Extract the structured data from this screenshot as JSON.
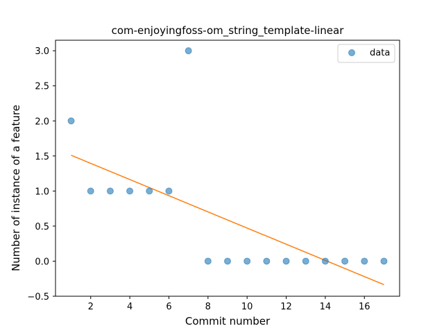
{
  "chart_data": {
    "type": "scatter",
    "title": "com-enjoyingfoss-om_string_template-linear",
    "xlabel": "Commit number",
    "ylabel": "Number of instance of a feature",
    "xlim": [
      0.2,
      17.8
    ],
    "ylim": [
      -0.5,
      3.15
    ],
    "xticks": [
      2,
      4,
      6,
      8,
      10,
      12,
      14,
      16
    ],
    "yticks": [
      -0.5,
      0.0,
      0.5,
      1.0,
      1.5,
      2.0,
      2.5,
      3.0
    ],
    "xtick_labels": [
      "2",
      "4",
      "6",
      "8",
      "10",
      "12",
      "14",
      "16"
    ],
    "ytick_labels": [
      "−0.5",
      "0.0",
      "0.5",
      "1.0",
      "1.5",
      "2.0",
      "2.5",
      "3.0"
    ],
    "series": [
      {
        "name": "data",
        "kind": "scatter",
        "color": "#1f77b4",
        "x": [
          1,
          2,
          3,
          4,
          5,
          6,
          7,
          8,
          9,
          10,
          11,
          12,
          13,
          14,
          15,
          16,
          17
        ],
        "y": [
          2,
          1,
          1,
          1,
          1,
          1,
          3,
          0,
          0,
          0,
          0,
          0,
          0,
          0,
          0,
          0,
          0
        ]
      },
      {
        "kind": "line",
        "color": "#ff7f0e",
        "x": [
          1,
          17
        ],
        "y": [
          1.51,
          -0.335
        ]
      }
    ],
    "legend": {
      "position": "top-right",
      "entries": [
        "data"
      ]
    },
    "grid": false
  }
}
